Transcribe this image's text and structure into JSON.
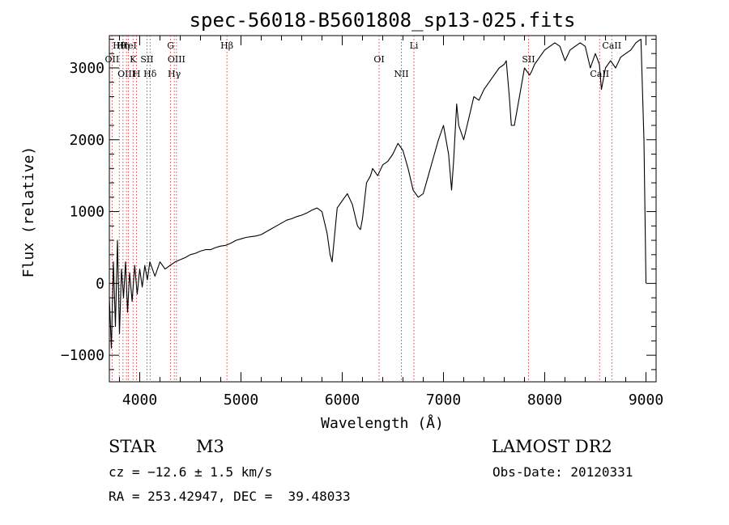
{
  "chart_data": {
    "type": "line",
    "title": "spec-56018-B5601808_sp13-025.fits",
    "xlabel": "Wavelength (Å)",
    "ylabel": "Flux (relative)",
    "xlim": [
      3700,
      9100
    ],
    "ylim": [
      -1370,
      3450
    ],
    "xticks": [
      4000,
      5000,
      6000,
      7000,
      8000,
      9000
    ],
    "yticks": [
      -1000,
      0,
      1000,
      2000,
      3000
    ],
    "grid": false,
    "series": [
      {
        "name": "",
        "color": "#000000",
        "x": [
          3700,
          3720,
          3740,
          3760,
          3780,
          3800,
          3820,
          3840,
          3860,
          3880,
          3900,
          3925,
          3950,
          3975,
          4000,
          4025,
          4050,
          4075,
          4100,
          4150,
          4200,
          4250,
          4300,
          4350,
          4400,
          4450,
          4500,
          4550,
          4600,
          4650,
          4700,
          4750,
          4800,
          4850,
          4900,
          4950,
          5000,
          5050,
          5100,
          5150,
          5200,
          5250,
          5300,
          5350,
          5400,
          5450,
          5500,
          5550,
          5600,
          5650,
          5700,
          5750,
          5800,
          5850,
          5880,
          5900,
          5920,
          5950,
          6000,
          6050,
          6100,
          6150,
          6180,
          6200,
          6240,
          6280,
          6300,
          6350,
          6400,
          6450,
          6500,
          6550,
          6600,
          6650,
          6700,
          6750,
          6800,
          6850,
          6900,
          6950,
          7000,
          7050,
          7080,
          7100,
          7130,
          7150,
          7200,
          7250,
          7300,
          7350,
          7400,
          7450,
          7500,
          7550,
          7600,
          7620,
          7650,
          7670,
          7700,
          7750,
          7800,
          7850,
          7870,
          7900,
          7950,
          8000,
          8050,
          8100,
          8150,
          8200,
          8250,
          8300,
          8350,
          8400,
          8450,
          8500,
          8540,
          8560,
          8600,
          8650,
          8700,
          8750,
          8800,
          8850,
          8900,
          8950,
          8980,
          9000
        ],
        "values": [
          -200,
          -900,
          300,
          -600,
          600,
          -700,
          200,
          -200,
          300,
          -400,
          150,
          -250,
          250,
          -150,
          200,
          -50,
          250,
          50,
          300,
          100,
          300,
          200,
          250,
          300,
          330,
          360,
          400,
          420,
          450,
          470,
          470,
          500,
          520,
          530,
          560,
          600,
          620,
          640,
          650,
          660,
          680,
          720,
          760,
          800,
          840,
          880,
          900,
          930,
          950,
          980,
          1020,
          1050,
          1000,
          700,
          400,
          300,
          600,
          1050,
          1150,
          1250,
          1100,
          800,
          750,
          900,
          1400,
          1500,
          1600,
          1500,
          1650,
          1700,
          1800,
          1950,
          1850,
          1600,
          1300,
          1200,
          1250,
          1500,
          1750,
          2000,
          2200,
          1800,
          1300,
          1700,
          2500,
          2200,
          2000,
          2300,
          2600,
          2550,
          2700,
          2800,
          2900,
          3000,
          3050,
          3100,
          2600,
          2200,
          2200,
          2600,
          3000,
          2900,
          2950,
          3050,
          3150,
          3250,
          3300,
          3350,
          3300,
          3100,
          3250,
          3300,
          3350,
          3300,
          3000,
          3200,
          3050,
          2700,
          3000,
          3100,
          3000,
          3150,
          3200,
          3250,
          3350,
          3400,
          2000,
          0
        ]
      }
    ],
    "lines": [
      {
        "label": "Hθ",
        "x": 3798
      },
      {
        "label": "OII",
        "x": 3727
      },
      {
        "label": "OIII",
        "x": 3869
      },
      {
        "label": "Hη",
        "x": 3835
      },
      {
        "label": "K",
        "x": 3934
      },
      {
        "label": "H",
        "x": 3969
      },
      {
        "label": "HeI",
        "x": 3889
      },
      {
        "label": "SII",
        "x": 4072
      },
      {
        "label": "Hδ",
        "x": 4102
      },
      {
        "label": "G",
        "x": 4305
      },
      {
        "label": "OIII",
        "x": 4363
      },
      {
        "label": "Hγ",
        "x": 4341
      },
      {
        "label": "Hβ",
        "x": 4861
      },
      {
        "label": "OI",
        "x": 6364
      },
      {
        "label": "NII",
        "x": 6584
      },
      {
        "label": "Li",
        "x": 6708
      },
      {
        "label": "SII",
        "x": 7840
      },
      {
        "label": "CaII",
        "x": 8542
      },
      {
        "label": "CaII",
        "x": 8662
      }
    ]
  },
  "info": {
    "object_class": "STAR",
    "subclass": "M3",
    "survey": "LAMOST DR2",
    "cz": "cz = −12.6 ± 1.5 km/s",
    "obs_date": "Obs-Date: 20120331",
    "coords": "RA = 253.42947, DEC =  39.48033"
  }
}
